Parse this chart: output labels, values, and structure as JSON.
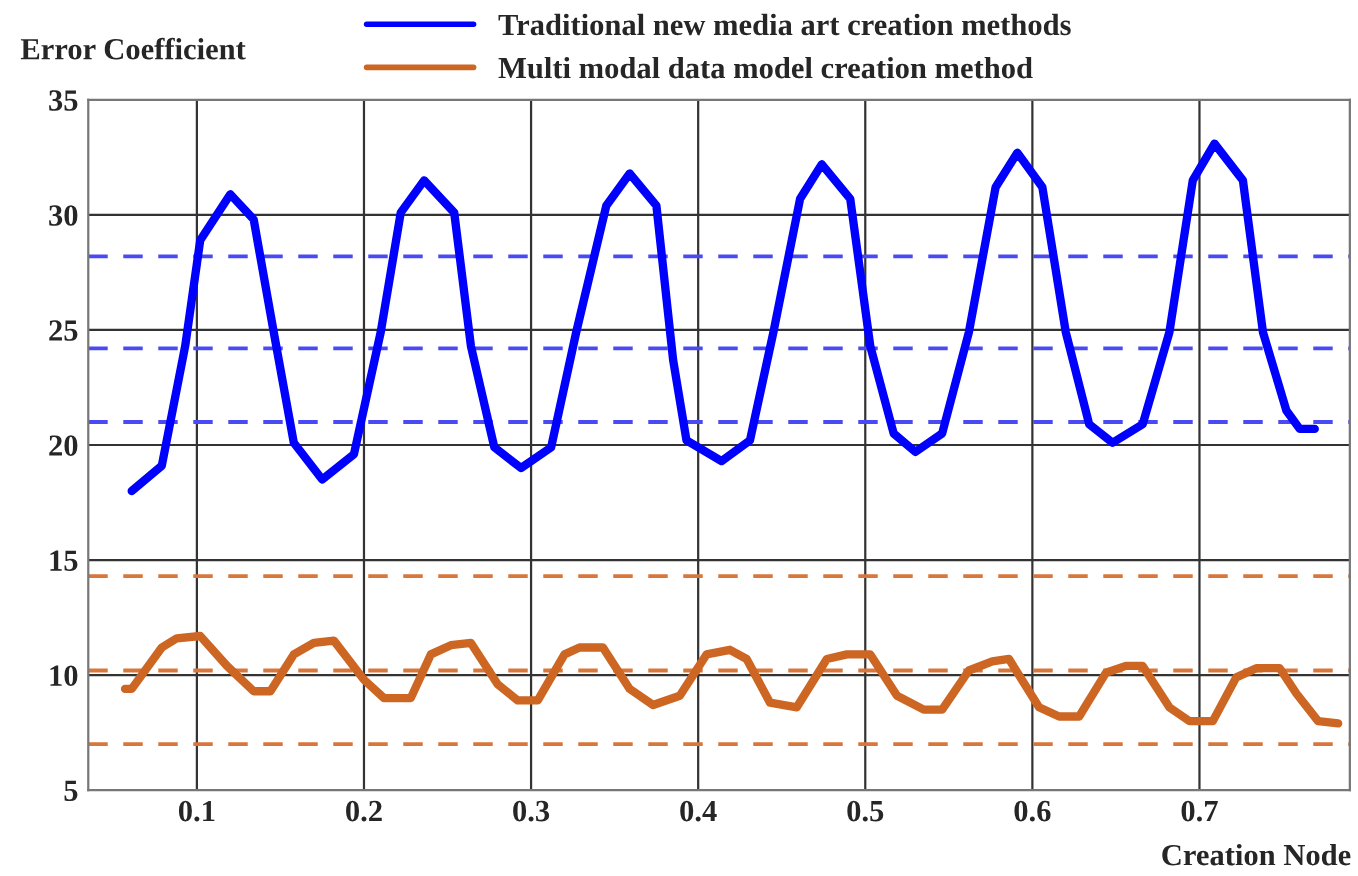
{
  "chart_data": {
    "type": "line",
    "xlabel": "Creation Node",
    "ylabel": "Error Coefficient",
    "xlim": [
      0.035,
      0.79
    ],
    "xticks": [
      0.1,
      0.2,
      0.3,
      0.4,
      0.5,
      0.6,
      0.7
    ],
    "ylim": [
      5,
      35
    ],
    "yticks": [
      5,
      10,
      15,
      20,
      25,
      30,
      35
    ],
    "grid": true,
    "legend": "top",
    "line_style": "solid",
    "marker": "none",
    "series": [
      {
        "name": "Traditional new media art creation methods",
        "color": "#0000ff",
        "x": [
          0.061,
          0.079,
          0.093,
          0.102,
          0.12,
          0.134,
          0.146,
          0.158,
          0.175,
          0.194,
          0.21,
          0.222,
          0.236,
          0.254,
          0.264,
          0.278,
          0.294,
          0.312,
          0.327,
          0.345,
          0.359,
          0.375,
          0.385,
          0.393,
          0.414,
          0.431,
          0.445,
          0.461,
          0.474,
          0.491,
          0.503,
          0.517,
          0.53,
          0.546,
          0.562,
          0.578,
          0.591,
          0.606,
          0.62,
          0.634,
          0.648,
          0.666,
          0.682,
          0.696,
          0.709,
          0.726,
          0.738,
          0.752,
          0.76,
          0.769
        ],
        "values": [
          18.0,
          19.1,
          24.3,
          28.9,
          30.9,
          29.8,
          24.9,
          20.1,
          18.5,
          19.6,
          24.9,
          30.1,
          31.5,
          30.1,
          24.3,
          19.9,
          19.0,
          19.9,
          24.9,
          30.4,
          31.8,
          30.4,
          23.7,
          20.2,
          19.3,
          20.2,
          24.9,
          30.7,
          32.2,
          30.7,
          24.3,
          20.5,
          19.7,
          20.5,
          24.9,
          31.2,
          32.7,
          31.2,
          24.9,
          20.9,
          20.1,
          20.9,
          24.9,
          31.5,
          33.1,
          31.5,
          24.9,
          21.5,
          20.7,
          20.7
        ]
      },
      {
        "name": "Multi modal data model creation method",
        "color": "#cc6622",
        "x": [
          0.057,
          0.061,
          0.079,
          0.088,
          0.102,
          0.118,
          0.134,
          0.144,
          0.158,
          0.17,
          0.182,
          0.2,
          0.212,
          0.228,
          0.24,
          0.252,
          0.264,
          0.28,
          0.292,
          0.304,
          0.32,
          0.329,
          0.343,
          0.359,
          0.373,
          0.389,
          0.405,
          0.419,
          0.429,
          0.443,
          0.459,
          0.477,
          0.489,
          0.503,
          0.519,
          0.535,
          0.546,
          0.562,
          0.576,
          0.586,
          0.604,
          0.616,
          0.628,
          0.644,
          0.656,
          0.666,
          0.682,
          0.694,
          0.708,
          0.722,
          0.734,
          0.748,
          0.758,
          0.771,
          0.783
        ],
        "values": [
          9.4,
          9.4,
          11.2,
          11.6,
          11.7,
          10.4,
          9.3,
          9.3,
          10.9,
          11.4,
          11.5,
          9.8,
          9.0,
          9.0,
          10.9,
          11.3,
          11.4,
          9.6,
          8.9,
          8.9,
          10.9,
          11.2,
          11.2,
          9.4,
          8.7,
          9.1,
          10.9,
          11.1,
          10.7,
          8.8,
          8.6,
          10.7,
          10.9,
          10.9,
          9.1,
          8.5,
          8.5,
          10.2,
          10.6,
          10.7,
          8.6,
          8.2,
          8.2,
          10.1,
          10.4,
          10.4,
          8.6,
          8.0,
          8.0,
          9.9,
          10.3,
          10.3,
          9.2,
          8.0,
          7.9
        ]
      }
    ],
    "ref_lines": [
      {
        "axis": "y",
        "value": 28.2,
        "color": "#4a4af5",
        "line_style": "dashed"
      },
      {
        "axis": "y",
        "value": 24.2,
        "color": "#4a4af5",
        "line_style": "dashed"
      },
      {
        "axis": "y",
        "value": 21.0,
        "color": "#4a4af5",
        "line_style": "dashed"
      },
      {
        "axis": "y",
        "value": 14.3,
        "color": "#d9763a",
        "line_style": "dashed"
      },
      {
        "axis": "y",
        "value": 10.2,
        "color": "#d9763a",
        "line_style": "dashed"
      },
      {
        "axis": "y",
        "value": 7.0,
        "color": "#d9763a",
        "line_style": "dashed"
      }
    ]
  }
}
